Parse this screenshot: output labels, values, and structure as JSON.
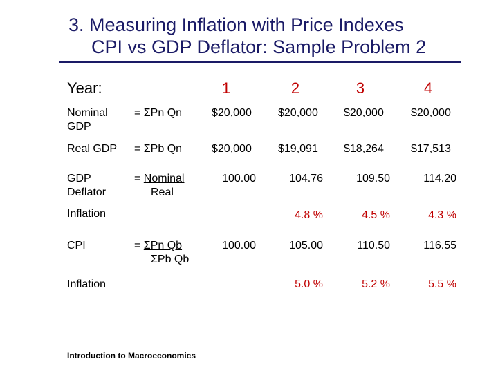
{
  "title": {
    "line1": "3.  Measuring Inflation with Price Indexes",
    "line2": "CPI vs GDP Deflator: Sample Problem 2"
  },
  "header": {
    "year_label": "Year:",
    "years": [
      "1",
      "2",
      "3",
      "4"
    ]
  },
  "rows": {
    "nominal_gdp": {
      "label_line1": "Nominal",
      "label_line2": "GDP",
      "formula": "= ΣPn Qn",
      "values": [
        "$20,000",
        "$20,000",
        "$20,000",
        "$20,000"
      ]
    },
    "real_gdp": {
      "label": "Real GDP",
      "formula": "= ΣPb Qn",
      "values": [
        "$20,000",
        "$19,091",
        "$18,264",
        "$17,513"
      ]
    },
    "gdp_deflator": {
      "label_line1": "GDP",
      "label_line2": "Deflator",
      "formula_numerator": "Nominal",
      "formula_prefix": "= ",
      "formula_denominator": "Real",
      "values": [
        "100.00",
        "104.76",
        "109.50",
        "114.20"
      ]
    },
    "inflation_deflator": {
      "label": "Inflation",
      "values": [
        "4.8 %",
        "4.5 %",
        "4.3 %"
      ]
    },
    "cpi": {
      "label": "CPI",
      "formula_prefix": "= ",
      "formula_numerator": "ΣPn Qb",
      "formula_denominator": "ΣPb Qb",
      "values": [
        "100.00",
        "105.00",
        "110.50",
        "116.55"
      ]
    },
    "inflation_cpi": {
      "label": "Inflation",
      "values": [
        "5.0 %",
        "5.2 %",
        "5.5 %"
      ]
    }
  },
  "footer": "Introduction to Macroeconomics",
  "colors": {
    "title": "#1a1a66",
    "accent_red": "#c00000"
  }
}
